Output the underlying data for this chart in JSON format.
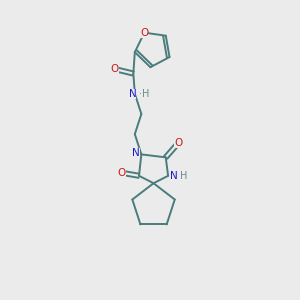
{
  "bg_color": "#ebebeb",
  "bond_color": "#4a7c7c",
  "N_color": "#1a1acc",
  "O_color": "#cc1a1a",
  "H_color": "#6a8a8a",
  "line_width": 1.4,
  "fig_size": [
    3.0,
    3.0
  ],
  "dpi": 100,
  "xlim": [
    0,
    10
  ],
  "ylim": [
    0,
    10
  ]
}
